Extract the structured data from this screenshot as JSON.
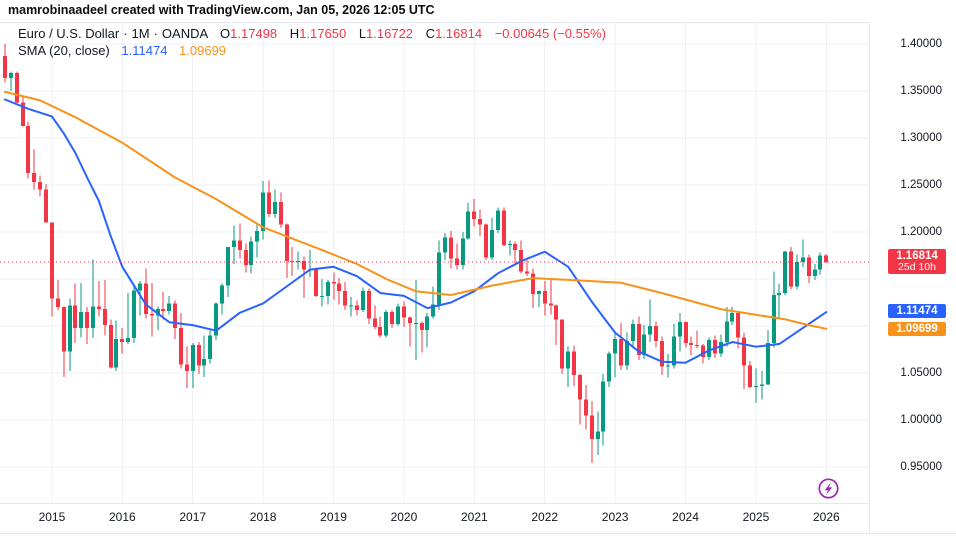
{
  "header": {
    "credit_line": "mamrobinaadeel created with TradingView.com, Jan 05, 2026 12:05 UTC"
  },
  "legend": {
    "symbol": "Euro / U.S. Dollar",
    "separator": "·",
    "interval": "1M",
    "exchange": "OANDA",
    "open_label": "O",
    "open": "1.17498",
    "high_label": "H",
    "high": "1.17650",
    "low_label": "L",
    "low": "1.16722",
    "close_label": "C",
    "close": "1.16814",
    "change": "−0.00645 (−0.55%)",
    "indicator_name": "SMA (20, close)",
    "indicator_value_fast": "1.11474",
    "indicator_value_slow": "1.09699"
  },
  "price_axis": {
    "labels": [
      {
        "text": "1.40000",
        "value": 1.4
      },
      {
        "text": "1.35000",
        "value": 1.35
      },
      {
        "text": "1.30000",
        "value": 1.3
      },
      {
        "text": "1.25000",
        "value": 1.25
      },
      {
        "text": "1.20000",
        "value": 1.2
      },
      {
        "text": "1.05000",
        "value": 1.05
      },
      {
        "text": "1.00000",
        "value": 1.0
      },
      {
        "text": "0.95000",
        "value": 0.95
      }
    ],
    "last_price": {
      "text": "1.16814",
      "countdown": "25d 10h",
      "color": "#f23645"
    },
    "ma_labels": [
      {
        "text": "1.11474",
        "value": 1.11474,
        "color": "#2962ff"
      },
      {
        "text": "1.09699",
        "value": 1.09699,
        "color": "#f7931a"
      }
    ]
  },
  "time_axis": {
    "labels": [
      "2015",
      "2016",
      "2017",
      "2018",
      "2019",
      "2020",
      "2021",
      "2022",
      "2023",
      "2024",
      "2025",
      "2026"
    ]
  },
  "misc": {
    "realtime_icon_color": "#9c27b0"
  },
  "chart_data": {
    "type": "candlestick",
    "title": "Euro / U.S. Dollar, 1M, OANDA",
    "pair": "EUR/USD",
    "timeframe": "1M",
    "start_month": "2014-05",
    "first_year_tick_month": 8,
    "last_close": 1.16814,
    "ylim": [
      0.9225,
      1.4234
    ],
    "grid_levels": [
      0.95,
      1.0,
      1.05,
      1.1,
      1.15,
      1.2,
      1.25,
      1.3,
      1.35,
      1.4
    ],
    "colors": {
      "up": "#089981",
      "down": "#f23645",
      "grid": "#eef0f4",
      "dotted_last_price": "#f23645"
    },
    "ohlc": [
      [
        1.387,
        1.4,
        1.359,
        1.364
      ],
      [
        1.364,
        1.371,
        1.35,
        1.369
      ],
      [
        1.369,
        1.371,
        1.337,
        1.338
      ],
      [
        1.338,
        1.344,
        1.312,
        1.313
      ],
      [
        1.313,
        1.317,
        1.257,
        1.263
      ],
      [
        1.263,
        1.288,
        1.245,
        1.253
      ],
      [
        1.253,
        1.26,
        1.238,
        1.245
      ],
      [
        1.245,
        1.251,
        1.21,
        1.21
      ],
      [
        1.21,
        1.21,
        1.11,
        1.129
      ],
      [
        1.129,
        1.149,
        1.117,
        1.12
      ],
      [
        1.12,
        1.121,
        1.046,
        1.073
      ],
      [
        1.073,
        1.129,
        1.052,
        1.122
      ],
      [
        1.122,
        1.145,
        1.082,
        1.098
      ],
      [
        1.098,
        1.146,
        1.088,
        1.115
      ],
      [
        1.115,
        1.12,
        1.081,
        1.098
      ],
      [
        1.098,
        1.171,
        1.087,
        1.121
      ],
      [
        1.121,
        1.148,
        1.11,
        1.118
      ],
      [
        1.118,
        1.149,
        1.09,
        1.101
      ],
      [
        1.101,
        1.107,
        1.055,
        1.056
      ],
      [
        1.056,
        1.106,
        1.052,
        1.086
      ],
      [
        1.086,
        1.098,
        1.071,
        1.083
      ],
      [
        1.083,
        1.135,
        1.081,
        1.087
      ],
      [
        1.087,
        1.144,
        1.082,
        1.138
      ],
      [
        1.138,
        1.148,
        1.111,
        1.145
      ],
      [
        1.145,
        1.161,
        1.108,
        1.113
      ],
      [
        1.113,
        1.146,
        1.089,
        1.111
      ],
      [
        1.111,
        1.121,
        1.096,
        1.118
      ],
      [
        1.118,
        1.136,
        1.107,
        1.116
      ],
      [
        1.116,
        1.132,
        1.112,
        1.124
      ],
      [
        1.124,
        1.127,
        1.086,
        1.098
      ],
      [
        1.098,
        1.114,
        1.055,
        1.059
      ],
      [
        1.059,
        1.078,
        1.034,
        1.052
      ],
      [
        1.052,
        1.082,
        1.034,
        1.08
      ],
      [
        1.08,
        1.083,
        1.049,
        1.058
      ],
      [
        1.058,
        1.09,
        1.046,
        1.065
      ],
      [
        1.065,
        1.095,
        1.06,
        1.09
      ],
      [
        1.09,
        1.125,
        1.085,
        1.124
      ],
      [
        1.124,
        1.145,
        1.112,
        1.143
      ],
      [
        1.143,
        1.184,
        1.131,
        1.184
      ],
      [
        1.184,
        1.207,
        1.166,
        1.191
      ],
      [
        1.191,
        1.209,
        1.172,
        1.181
      ],
      [
        1.181,
        1.188,
        1.157,
        1.165
      ],
      [
        1.165,
        1.195,
        1.156,
        1.19
      ],
      [
        1.19,
        1.208,
        1.173,
        1.201
      ],
      [
        1.201,
        1.254,
        1.192,
        1.242
      ],
      [
        1.242,
        1.255,
        1.216,
        1.219
      ],
      [
        1.219,
        1.245,
        1.215,
        1.232
      ],
      [
        1.232,
        1.242,
        1.204,
        1.208
      ],
      [
        1.208,
        1.209,
        1.151,
        1.169
      ],
      [
        1.169,
        1.184,
        1.153,
        1.168
      ],
      [
        1.168,
        1.179,
        1.16,
        1.169
      ],
      [
        1.169,
        1.174,
        1.13,
        1.16
      ],
      [
        1.16,
        1.181,
        1.152,
        1.16
      ],
      [
        1.16,
        1.162,
        1.131,
        1.132
      ],
      [
        1.132,
        1.15,
        1.121,
        1.132
      ],
      [
        1.132,
        1.149,
        1.123,
        1.147
      ],
      [
        1.147,
        1.157,
        1.128,
        1.145
      ],
      [
        1.145,
        1.151,
        1.123,
        1.137
      ],
      [
        1.137,
        1.147,
        1.117,
        1.122
      ],
      [
        1.122,
        1.131,
        1.11,
        1.122
      ],
      [
        1.122,
        1.127,
        1.111,
        1.117
      ],
      [
        1.117,
        1.141,
        1.115,
        1.137
      ],
      [
        1.137,
        1.14,
        1.102,
        1.108
      ],
      [
        1.108,
        1.122,
        1.097,
        1.099
      ],
      [
        1.099,
        1.11,
        1.088,
        1.09
      ],
      [
        1.09,
        1.117,
        1.088,
        1.115
      ],
      [
        1.115,
        1.117,
        1.098,
        1.102
      ],
      [
        1.102,
        1.124,
        1.1,
        1.121
      ],
      [
        1.121,
        1.126,
        1.099,
        1.109
      ],
      [
        1.109,
        1.11,
        1.078,
        1.103
      ],
      [
        1.103,
        1.149,
        1.064,
        1.103
      ],
      [
        1.103,
        1.105,
        1.072,
        1.096
      ],
      [
        1.096,
        1.114,
        1.077,
        1.11
      ],
      [
        1.11,
        1.142,
        1.108,
        1.123
      ],
      [
        1.123,
        1.191,
        1.117,
        1.178
      ],
      [
        1.178,
        1.199,
        1.17,
        1.194
      ],
      [
        1.194,
        1.201,
        1.161,
        1.172
      ],
      [
        1.172,
        1.188,
        1.16,
        1.165
      ],
      [
        1.165,
        1.2,
        1.16,
        1.193
      ],
      [
        1.193,
        1.231,
        1.192,
        1.222
      ],
      [
        1.222,
        1.235,
        1.206,
        1.214
      ],
      [
        1.214,
        1.224,
        1.196,
        1.208
      ],
      [
        1.208,
        1.209,
        1.17,
        1.173
      ],
      [
        1.173,
        1.215,
        1.17,
        1.202
      ],
      [
        1.202,
        1.226,
        1.199,
        1.223
      ],
      [
        1.223,
        1.226,
        1.185,
        1.186
      ],
      [
        1.186,
        1.191,
        1.175,
        1.187
      ],
      [
        1.187,
        1.19,
        1.167,
        1.181
      ],
      [
        1.181,
        1.191,
        1.156,
        1.158
      ],
      [
        1.158,
        1.17,
        1.153,
        1.156
      ],
      [
        1.156,
        1.161,
        1.119,
        1.134
      ],
      [
        1.134,
        1.138,
        1.12,
        1.137
      ],
      [
        1.137,
        1.148,
        1.111,
        1.124
      ],
      [
        1.124,
        1.149,
        1.112,
        1.122
      ],
      [
        1.122,
        1.123,
        1.08,
        1.107
      ],
      [
        1.107,
        1.107,
        1.049,
        1.055
      ],
      [
        1.055,
        1.078,
        1.035,
        1.073
      ],
      [
        1.073,
        1.079,
        1.036,
        1.048
      ],
      [
        1.048,
        1.049,
        0.995,
        1.022
      ],
      [
        1.022,
        1.037,
        0.99,
        1.005
      ],
      [
        1.005,
        1.02,
        0.954,
        0.98
      ],
      [
        0.98,
        1.009,
        0.963,
        0.988
      ],
      [
        0.988,
        1.049,
        0.973,
        1.041
      ],
      [
        1.041,
        1.073,
        1.035,
        1.071
      ],
      [
        1.071,
        1.093,
        1.045,
        1.086
      ],
      [
        1.086,
        1.103,
        1.053,
        1.058
      ],
      [
        1.058,
        1.093,
        1.053,
        1.084
      ],
      [
        1.084,
        1.107,
        1.076,
        1.102
      ],
      [
        1.102,
        1.11,
        1.064,
        1.069
      ],
      [
        1.069,
        1.101,
        1.065,
        1.091
      ],
      [
        1.091,
        1.128,
        1.083,
        1.1
      ],
      [
        1.1,
        1.105,
        1.077,
        1.084
      ],
      [
        1.084,
        1.089,
        1.048,
        1.057
      ],
      [
        1.057,
        1.07,
        1.045,
        1.058
      ],
      [
        1.058,
        1.102,
        1.055,
        1.089
      ],
      [
        1.089,
        1.114,
        1.073,
        1.104
      ],
      [
        1.104,
        1.105,
        1.077,
        1.082
      ],
      [
        1.082,
        1.089,
        1.069,
        1.08
      ],
      [
        1.08,
        1.095,
        1.076,
        1.079
      ],
      [
        1.079,
        1.081,
        1.06,
        1.067
      ],
      [
        1.067,
        1.088,
        1.064,
        1.085
      ],
      [
        1.085,
        1.09,
        1.066,
        1.071
      ],
      [
        1.071,
        1.091,
        1.067,
        1.083
      ],
      [
        1.083,
        1.12,
        1.078,
        1.105
      ],
      [
        1.105,
        1.12,
        1.101,
        1.114
      ],
      [
        1.114,
        1.115,
        1.076,
        1.088
      ],
      [
        1.088,
        1.093,
        1.033,
        1.058
      ],
      [
        1.058,
        1.063,
        1.034,
        1.035
      ],
      [
        1.035,
        1.055,
        1.018,
        1.036
      ],
      [
        1.036,
        1.052,
        1.022,
        1.038
      ],
      [
        1.038,
        1.096,
        1.037,
        1.082
      ],
      [
        1.082,
        1.158,
        1.077,
        1.133
      ],
      [
        1.133,
        1.145,
        1.108,
        1.135
      ],
      [
        1.135,
        1.18,
        1.133,
        1.179
      ],
      [
        1.179,
        1.184,
        1.139,
        1.142
      ],
      [
        1.142,
        1.176,
        1.139,
        1.168
      ],
      [
        1.168,
        1.192,
        1.163,
        1.173
      ],
      [
        1.173,
        1.176,
        1.146,
        1.153
      ],
      [
        1.153,
        1.166,
        1.149,
        1.16
      ],
      [
        1.16,
        1.178,
        1.155,
        1.175
      ],
      [
        1.17498,
        1.1765,
        1.16722,
        1.16814
      ]
    ],
    "overlays": [
      {
        "name": "sma-20-line",
        "label": "SMA 20 close",
        "color": "#2962ff",
        "last_value": 1.11474,
        "points": [
          [
            0,
            1.341
          ],
          [
            4,
            1.331
          ],
          [
            8,
            1.323
          ],
          [
            10,
            1.305
          ],
          [
            12,
            1.284
          ],
          [
            14,
            1.258
          ],
          [
            16,
            1.233
          ],
          [
            18,
            1.196
          ],
          [
            20,
            1.163
          ],
          [
            24,
            1.123
          ],
          [
            28,
            1.104
          ],
          [
            32,
            1.101
          ],
          [
            36,
            1.095
          ],
          [
            40,
            1.114
          ],
          [
            44,
            1.124
          ],
          [
            48,
            1.142
          ],
          [
            52,
            1.16
          ],
          [
            56,
            1.163
          ],
          [
            60,
            1.153
          ],
          [
            64,
            1.135
          ],
          [
            68,
            1.132
          ],
          [
            72,
            1.119
          ],
          [
            76,
            1.125
          ],
          [
            80,
            1.137
          ],
          [
            84,
            1.156
          ],
          [
            88,
            1.169
          ],
          [
            92,
            1.179
          ],
          [
            96,
            1.163
          ],
          [
            100,
            1.126
          ],
          [
            104,
            1.093
          ],
          [
            108,
            1.073
          ],
          [
            112,
            1.062
          ],
          [
            116,
            1.061
          ],
          [
            120,
            1.074
          ],
          [
            124,
            1.083
          ],
          [
            128,
            1.078
          ],
          [
            132,
            1.081
          ],
          [
            136,
            1.098
          ],
          [
            140,
            1.11474
          ]
        ]
      },
      {
        "name": "sma-slow-line",
        "label": "SMA slow",
        "color": "#f7931a",
        "last_value": 1.09699,
        "points": [
          [
            0,
            1.349
          ],
          [
            6,
            1.34
          ],
          [
            12,
            1.322
          ],
          [
            20,
            1.295
          ],
          [
            29,
            1.258
          ],
          [
            36,
            1.235
          ],
          [
            44,
            1.205
          ],
          [
            54,
            1.181
          ],
          [
            60,
            1.166
          ],
          [
            65,
            1.15
          ],
          [
            70,
            1.137
          ],
          [
            76,
            1.133
          ],
          [
            83,
            1.143
          ],
          [
            90,
            1.151
          ],
          [
            96,
            1.149
          ],
          [
            105,
            1.146
          ],
          [
            112,
            1.135
          ],
          [
            122,
            1.118
          ],
          [
            128,
            1.112
          ],
          [
            133,
            1.107
          ],
          [
            137,
            1.101
          ],
          [
            140,
            1.09699
          ]
        ]
      }
    ]
  }
}
